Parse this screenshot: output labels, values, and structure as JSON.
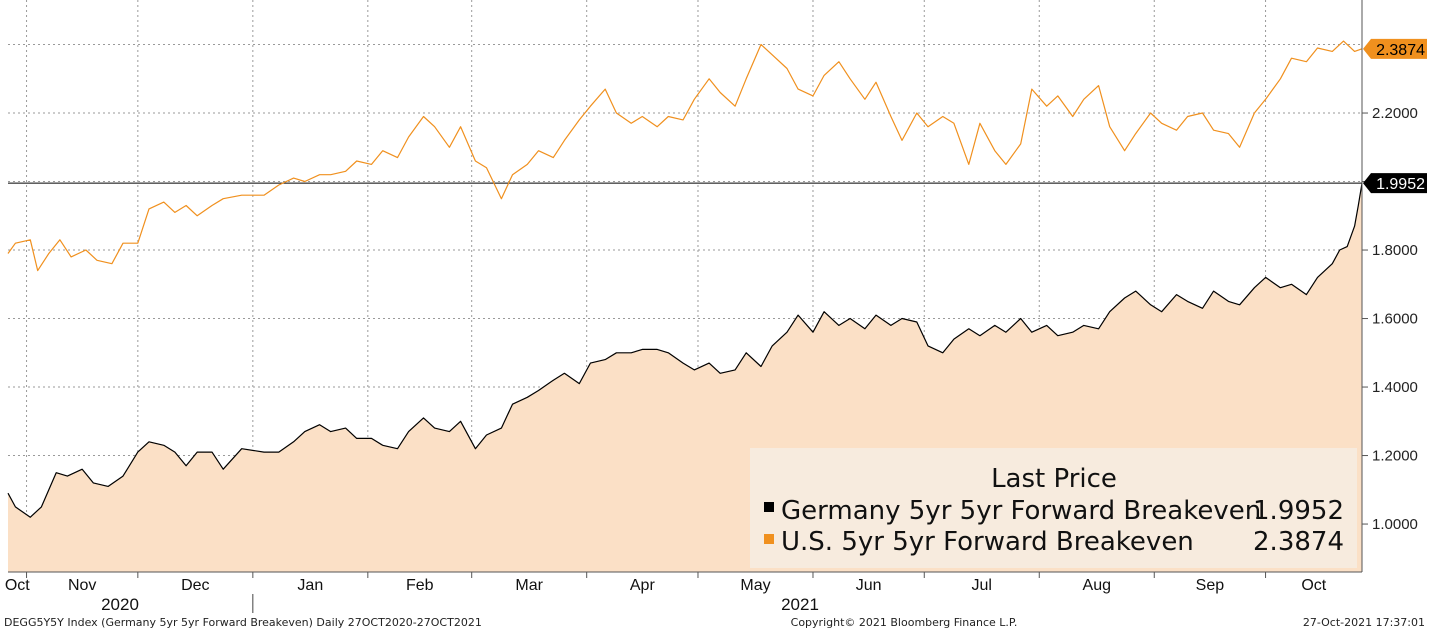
{
  "chart_data": {
    "type": "area",
    "x_start": "27-Oct-2020",
    "x_end": "27-Oct-2021",
    "ylim": [
      0.86,
      2.53
    ],
    "y_ticks": [
      "1.0000",
      "1.2000",
      "1.4000",
      "1.6000",
      "1.8000",
      "2.0000",
      "2.2000"
    ],
    "grid": true,
    "months": [
      "Oct",
      "Nov",
      "Dec",
      "Jan",
      "Feb",
      "Mar",
      "Apr",
      "May",
      "Jun",
      "Jul",
      "Aug",
      "Sep",
      "Oct"
    ],
    "years": [
      "2020",
      "2021"
    ],
    "reference_line": 1.9952,
    "series": [
      {
        "name": "Germany 5yr 5yr Forward Breakeven",
        "style": "area",
        "color": "#000000",
        "fill": "#fbe0c6",
        "last_label": "1.9952",
        "points": [
          [
            "2020-10-27",
            1.09
          ],
          [
            "2020-10-29",
            1.05
          ],
          [
            "2020-11-02",
            1.02
          ],
          [
            "2020-11-05",
            1.05
          ],
          [
            "2020-11-09",
            1.15
          ],
          [
            "2020-11-12",
            1.14
          ],
          [
            "2020-11-16",
            1.16
          ],
          [
            "2020-11-19",
            1.12
          ],
          [
            "2020-11-23",
            1.11
          ],
          [
            "2020-11-27",
            1.14
          ],
          [
            "2020-12-01",
            1.21
          ],
          [
            "2020-12-04",
            1.24
          ],
          [
            "2020-12-08",
            1.23
          ],
          [
            "2020-12-11",
            1.21
          ],
          [
            "2020-12-14",
            1.17
          ],
          [
            "2020-12-17",
            1.21
          ],
          [
            "2020-12-21",
            1.21
          ],
          [
            "2020-12-24",
            1.16
          ],
          [
            "2020-12-29",
            1.22
          ],
          [
            "2021-01-04",
            1.21
          ],
          [
            "2021-01-08",
            1.21
          ],
          [
            "2021-01-12",
            1.24
          ],
          [
            "2021-01-15",
            1.27
          ],
          [
            "2021-01-19",
            1.29
          ],
          [
            "2021-01-22",
            1.27
          ],
          [
            "2021-01-26",
            1.28
          ],
          [
            "2021-01-29",
            1.25
          ],
          [
            "2021-02-02",
            1.25
          ],
          [
            "2021-02-05",
            1.23
          ],
          [
            "2021-02-09",
            1.22
          ],
          [
            "2021-02-12",
            1.27
          ],
          [
            "2021-02-16",
            1.31
          ],
          [
            "2021-02-19",
            1.28
          ],
          [
            "2021-02-23",
            1.27
          ],
          [
            "2021-02-26",
            1.3
          ],
          [
            "2021-03-02",
            1.22
          ],
          [
            "2021-03-05",
            1.26
          ],
          [
            "2021-03-09",
            1.28
          ],
          [
            "2021-03-12",
            1.35
          ],
          [
            "2021-03-16",
            1.37
          ],
          [
            "2021-03-19",
            1.39
          ],
          [
            "2021-03-23",
            1.42
          ],
          [
            "2021-03-26",
            1.44
          ],
          [
            "2021-03-30",
            1.41
          ],
          [
            "2021-04-02",
            1.47
          ],
          [
            "2021-04-06",
            1.48
          ],
          [
            "2021-04-09",
            1.5
          ],
          [
            "2021-04-13",
            1.5
          ],
          [
            "2021-04-16",
            1.51
          ],
          [
            "2021-04-20",
            1.51
          ],
          [
            "2021-04-23",
            1.5
          ],
          [
            "2021-04-27",
            1.47
          ],
          [
            "2021-04-30",
            1.45
          ],
          [
            "2021-05-04",
            1.47
          ],
          [
            "2021-05-07",
            1.44
          ],
          [
            "2021-05-11",
            1.45
          ],
          [
            "2021-05-14",
            1.5
          ],
          [
            "2021-05-18",
            1.46
          ],
          [
            "2021-05-21",
            1.52
          ],
          [
            "2021-05-25",
            1.56
          ],
          [
            "2021-05-28",
            1.61
          ],
          [
            "2021-06-01",
            1.56
          ],
          [
            "2021-06-04",
            1.62
          ],
          [
            "2021-06-08",
            1.58
          ],
          [
            "2021-06-11",
            1.6
          ],
          [
            "2021-06-15",
            1.57
          ],
          [
            "2021-06-18",
            1.61
          ],
          [
            "2021-06-22",
            1.58
          ],
          [
            "2021-06-25",
            1.6
          ],
          [
            "2021-06-29",
            1.59
          ],
          [
            "2021-07-02",
            1.52
          ],
          [
            "2021-07-06",
            1.5
          ],
          [
            "2021-07-09",
            1.54
          ],
          [
            "2021-07-13",
            1.57
          ],
          [
            "2021-07-16",
            1.55
          ],
          [
            "2021-07-20",
            1.58
          ],
          [
            "2021-07-23",
            1.56
          ],
          [
            "2021-07-27",
            1.6
          ],
          [
            "2021-07-30",
            1.56
          ],
          [
            "2021-08-03",
            1.58
          ],
          [
            "2021-08-06",
            1.55
          ],
          [
            "2021-08-10",
            1.56
          ],
          [
            "2021-08-13",
            1.58
          ],
          [
            "2021-08-17",
            1.57
          ],
          [
            "2021-08-20",
            1.62
          ],
          [
            "2021-08-24",
            1.66
          ],
          [
            "2021-08-27",
            1.68
          ],
          [
            "2021-08-31",
            1.64
          ],
          [
            "2021-09-03",
            1.62
          ],
          [
            "2021-09-07",
            1.67
          ],
          [
            "2021-09-10",
            1.65
          ],
          [
            "2021-09-14",
            1.63
          ],
          [
            "2021-09-17",
            1.68
          ],
          [
            "2021-09-21",
            1.65
          ],
          [
            "2021-09-24",
            1.64
          ],
          [
            "2021-09-28",
            1.69
          ],
          [
            "2021-10-01",
            1.72
          ],
          [
            "2021-10-05",
            1.69
          ],
          [
            "2021-10-08",
            1.7
          ],
          [
            "2021-10-12",
            1.67
          ],
          [
            "2021-10-15",
            1.72
          ],
          [
            "2021-10-19",
            1.76
          ],
          [
            "2021-10-21",
            1.8
          ],
          [
            "2021-10-23",
            1.81
          ],
          [
            "2021-10-25",
            1.87
          ],
          [
            "2021-10-26",
            1.93
          ],
          [
            "2021-10-27",
            1.9952
          ]
        ]
      },
      {
        "name": "U.S. 5yr 5yr Forward Breakeven",
        "style": "line",
        "color": "#f0901e",
        "last_label": "2.3874",
        "points": [
          [
            "2020-10-27",
            1.79
          ],
          [
            "2020-10-29",
            1.82
          ],
          [
            "2020-11-02",
            1.83
          ],
          [
            "2020-11-04",
            1.74
          ],
          [
            "2020-11-07",
            1.79
          ],
          [
            "2020-11-10",
            1.83
          ],
          [
            "2020-11-13",
            1.78
          ],
          [
            "2020-11-17",
            1.8
          ],
          [
            "2020-11-20",
            1.77
          ],
          [
            "2020-11-24",
            1.76
          ],
          [
            "2020-11-27",
            1.82
          ],
          [
            "2020-12-01",
            1.82
          ],
          [
            "2020-12-04",
            1.92
          ],
          [
            "2020-12-08",
            1.94
          ],
          [
            "2020-12-11",
            1.91
          ],
          [
            "2020-12-14",
            1.93
          ],
          [
            "2020-12-17",
            1.9
          ],
          [
            "2020-12-21",
            1.93
          ],
          [
            "2020-12-24",
            1.95
          ],
          [
            "2020-12-29",
            1.96
          ],
          [
            "2021-01-04",
            1.96
          ],
          [
            "2021-01-08",
            1.99
          ],
          [
            "2021-01-12",
            2.01
          ],
          [
            "2021-01-15",
            2.0
          ],
          [
            "2021-01-19",
            2.02
          ],
          [
            "2021-01-22",
            2.02
          ],
          [
            "2021-01-26",
            2.03
          ],
          [
            "2021-01-29",
            2.06
          ],
          [
            "2021-02-02",
            2.05
          ],
          [
            "2021-02-05",
            2.09
          ],
          [
            "2021-02-09",
            2.07
          ],
          [
            "2021-02-12",
            2.13
          ],
          [
            "2021-02-16",
            2.19
          ],
          [
            "2021-02-19",
            2.16
          ],
          [
            "2021-02-23",
            2.1
          ],
          [
            "2021-02-26",
            2.16
          ],
          [
            "2021-03-02",
            2.06
          ],
          [
            "2021-03-05",
            2.04
          ],
          [
            "2021-03-09",
            1.95
          ],
          [
            "2021-03-12",
            2.02
          ],
          [
            "2021-03-16",
            2.05
          ],
          [
            "2021-03-19",
            2.09
          ],
          [
            "2021-03-23",
            2.07
          ],
          [
            "2021-03-26",
            2.12
          ],
          [
            "2021-03-30",
            2.18
          ],
          [
            "2021-04-02",
            2.22
          ],
          [
            "2021-04-06",
            2.27
          ],
          [
            "2021-04-09",
            2.2
          ],
          [
            "2021-04-13",
            2.17
          ],
          [
            "2021-04-16",
            2.19
          ],
          [
            "2021-04-20",
            2.16
          ],
          [
            "2021-04-23",
            2.19
          ],
          [
            "2021-04-27",
            2.18
          ],
          [
            "2021-04-30",
            2.24
          ],
          [
            "2021-05-04",
            2.3
          ],
          [
            "2021-05-07",
            2.26
          ],
          [
            "2021-05-11",
            2.22
          ],
          [
            "2021-05-14",
            2.3
          ],
          [
            "2021-05-18",
            2.4
          ],
          [
            "2021-05-21",
            2.37
          ],
          [
            "2021-05-25",
            2.33
          ],
          [
            "2021-05-28",
            2.27
          ],
          [
            "2021-06-01",
            2.25
          ],
          [
            "2021-06-04",
            2.31
          ],
          [
            "2021-06-08",
            2.35
          ],
          [
            "2021-06-11",
            2.3
          ],
          [
            "2021-06-15",
            2.24
          ],
          [
            "2021-06-18",
            2.29
          ],
          [
            "2021-06-22",
            2.19
          ],
          [
            "2021-06-25",
            2.12
          ],
          [
            "2021-06-29",
            2.2
          ],
          [
            "2021-07-02",
            2.16
          ],
          [
            "2021-07-06",
            2.19
          ],
          [
            "2021-07-09",
            2.17
          ],
          [
            "2021-07-13",
            2.05
          ],
          [
            "2021-07-16",
            2.17
          ],
          [
            "2021-07-20",
            2.09
          ],
          [
            "2021-07-23",
            2.05
          ],
          [
            "2021-07-27",
            2.11
          ],
          [
            "2021-07-30",
            2.27
          ],
          [
            "2021-08-03",
            2.22
          ],
          [
            "2021-08-06",
            2.25
          ],
          [
            "2021-08-10",
            2.19
          ],
          [
            "2021-08-13",
            2.24
          ],
          [
            "2021-08-17",
            2.28
          ],
          [
            "2021-08-20",
            2.16
          ],
          [
            "2021-08-24",
            2.09
          ],
          [
            "2021-08-27",
            2.14
          ],
          [
            "2021-08-31",
            2.2
          ],
          [
            "2021-09-03",
            2.17
          ],
          [
            "2021-09-07",
            2.15
          ],
          [
            "2021-09-10",
            2.19
          ],
          [
            "2021-09-14",
            2.2
          ],
          [
            "2021-09-17",
            2.15
          ],
          [
            "2021-09-21",
            2.14
          ],
          [
            "2021-09-24",
            2.1
          ],
          [
            "2021-09-28",
            2.2
          ],
          [
            "2021-10-01",
            2.24
          ],
          [
            "2021-10-05",
            2.3
          ],
          [
            "2021-10-08",
            2.36
          ],
          [
            "2021-10-12",
            2.35
          ],
          [
            "2021-10-15",
            2.39
          ],
          [
            "2021-10-19",
            2.38
          ],
          [
            "2021-10-22",
            2.41
          ],
          [
            "2021-10-25",
            2.38
          ],
          [
            "2021-10-27",
            2.3874
          ]
        ]
      }
    ]
  },
  "legend": {
    "title": "Last Price",
    "entries": [
      {
        "label": "Germany 5yr 5yr Forward Breakeven",
        "value": "1.9952",
        "color": "#000000"
      },
      {
        "label": "U.S. 5yr 5yr Forward Breakeven",
        "value": "2.3874",
        "color": "#f0901e"
      }
    ]
  },
  "footer": {
    "left": "DEGG5Y5Y Index (Germany 5yr 5yr Forward Breakeven)  Daily 27OCT2020-27OCT2021",
    "center": "Copyright© 2021 Bloomberg Finance L.P.",
    "right": "27-Oct-2021 17:37:01"
  }
}
